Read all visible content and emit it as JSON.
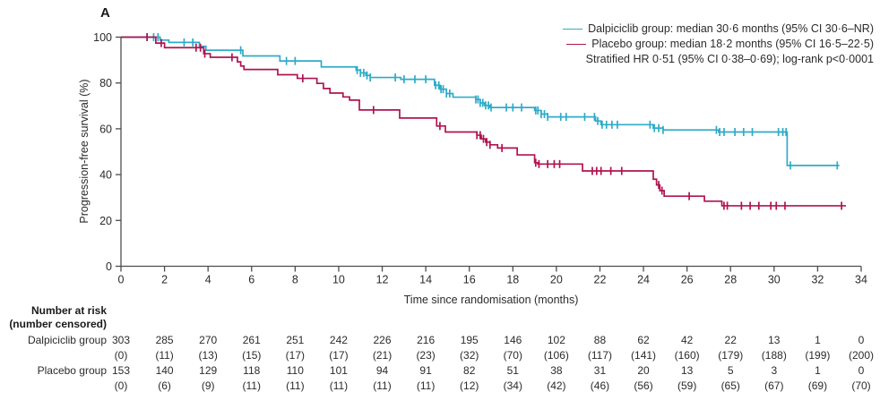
{
  "panel_label": "A",
  "colors": {
    "dalpiciclib": "#2fabc8",
    "placebo": "#b01351",
    "axis": "#4d4d4d",
    "text": "#2b2b2b"
  },
  "legend": {
    "entries": [
      {
        "label": "Dalpiciclib group: median 30·6 months (95% CI 30·6–NR)",
        "color": "#2fabc8"
      },
      {
        "label": "Placebo group: median 18·2 months (95% CI 16·5–22·5)",
        "color": "#b01351"
      }
    ],
    "note": "Stratified HR 0·51 (95% CI 0·38–0·69); log-rank p<0·0001"
  },
  "chart_data": {
    "type": "line",
    "subtype": "kaplan-meier-step",
    "title": "",
    "xlabel": "Time since randomisation (months)",
    "ylabel": "Progression-free survival (%)",
    "xlim": [
      0,
      34
    ],
    "ylim": [
      0,
      100
    ],
    "xticks": [
      0,
      2,
      4,
      6,
      8,
      10,
      12,
      14,
      16,
      18,
      20,
      22,
      24,
      26,
      28,
      30,
      32,
      34
    ],
    "yticks": [
      0,
      20,
      40,
      60,
      80,
      100
    ],
    "grid": false,
    "legend_position": "top-right",
    "series": [
      {
        "name": "Dalpiciclib group",
        "color": "#2fabc8",
        "steps": [
          [
            0,
            100
          ],
          [
            1.8,
            98.7
          ],
          [
            2.2,
            97.7
          ],
          [
            3.6,
            96.0
          ],
          [
            3.9,
            94.3
          ],
          [
            5.6,
            91.8
          ],
          [
            7.3,
            89.6
          ],
          [
            9.2,
            87.0
          ],
          [
            10.8,
            85.6
          ],
          [
            11.0,
            84.4
          ],
          [
            11.25,
            83.3
          ],
          [
            11.45,
            82.4
          ],
          [
            12.85,
            81.6
          ],
          [
            14.4,
            79.0
          ],
          [
            14.65,
            77.3
          ],
          [
            14.95,
            75.4
          ],
          [
            15.25,
            73.8
          ],
          [
            16.3,
            72.8
          ],
          [
            16.5,
            71.3
          ],
          [
            16.7,
            70.2
          ],
          [
            16.95,
            69.3
          ],
          [
            19.0,
            68.0
          ],
          [
            19.3,
            66.4
          ],
          [
            19.6,
            65.2
          ],
          [
            21.8,
            63.4
          ],
          [
            22.05,
            61.8
          ],
          [
            24.45,
            60.3
          ],
          [
            24.9,
            59.5
          ],
          [
            27.45,
            58.6
          ],
          [
            30.6,
            44.0
          ]
        ],
        "end": 33.0,
        "censor_times": [
          1.2,
          1.5,
          1.7,
          2.9,
          3.3,
          5.5,
          7.6,
          8.0,
          10.85,
          11.0,
          11.15,
          11.3,
          11.45,
          12.6,
          13.0,
          13.5,
          14.0,
          14.45,
          14.6,
          14.7,
          14.8,
          14.95,
          15.1,
          16.3,
          16.4,
          16.5,
          16.62,
          16.75,
          16.88,
          17.0,
          17.7,
          18.0,
          18.4,
          19.05,
          19.15,
          19.3,
          19.45,
          19.6,
          20.2,
          20.45,
          21.3,
          21.75,
          21.9,
          22.1,
          22.3,
          22.55,
          22.8,
          24.3,
          24.5,
          24.7,
          24.9,
          27.35,
          27.5,
          27.7,
          28.2,
          28.6,
          29.0,
          30.2,
          30.4,
          30.55,
          30.75,
          32.9
        ]
      },
      {
        "name": "Placebo group",
        "color": "#b01351",
        "steps": [
          [
            0,
            100
          ],
          [
            1.6,
            97.4
          ],
          [
            2.0,
            95.4
          ],
          [
            3.8,
            92.8
          ],
          [
            4.1,
            91.2
          ],
          [
            5.35,
            89.2
          ],
          [
            5.5,
            87.4
          ],
          [
            5.65,
            85.9
          ],
          [
            7.2,
            83.6
          ],
          [
            8.1,
            82.0
          ],
          [
            9.0,
            79.8
          ],
          [
            9.3,
            77.6
          ],
          [
            9.6,
            75.6
          ],
          [
            10.2,
            73.9
          ],
          [
            10.5,
            72.5
          ],
          [
            10.95,
            68.2
          ],
          [
            12.8,
            64.7
          ],
          [
            14.5,
            61.2
          ],
          [
            14.9,
            58.6
          ],
          [
            16.35,
            57.2
          ],
          [
            16.55,
            55.6
          ],
          [
            16.75,
            54.2
          ],
          [
            16.95,
            53.0
          ],
          [
            17.3,
            51.6
          ],
          [
            18.2,
            48.6
          ],
          [
            19.0,
            45.2
          ],
          [
            19.15,
            44.6
          ],
          [
            21.2,
            41.6
          ],
          [
            24.45,
            38.0
          ],
          [
            24.6,
            35.5
          ],
          [
            24.75,
            33.0
          ],
          [
            24.95,
            30.6
          ],
          [
            26.8,
            28.4
          ],
          [
            27.6,
            26.4
          ]
        ],
        "end": 33.3,
        "censor_times": [
          1.2,
          1.85,
          3.45,
          3.65,
          3.85,
          5.1,
          8.35,
          11.6,
          14.65,
          16.35,
          16.5,
          16.65,
          16.8,
          16.95,
          17.5,
          19.05,
          19.2,
          19.6,
          19.9,
          20.15,
          21.65,
          21.85,
          22.05,
          22.5,
          23.0,
          24.7,
          24.85,
          26.1,
          27.7,
          27.85,
          28.5,
          28.9,
          29.3,
          29.85,
          30.1,
          30.5,
          33.1
        ]
      }
    ]
  },
  "risk_table": {
    "header_line1": "Number at risk",
    "header_line2": "(number censored)",
    "time_points": [
      0,
      2,
      4,
      6,
      8,
      10,
      12,
      14,
      16,
      18,
      20,
      22,
      24,
      26,
      28,
      30,
      32,
      34
    ],
    "rows": [
      {
        "label": "Dalpiciclib group",
        "at_risk": [
          "303",
          "285",
          "270",
          "261",
          "251",
          "242",
          "226",
          "216",
          "195",
          "146",
          "102",
          "88",
          "62",
          "42",
          "22",
          "13",
          "1",
          "0"
        ],
        "censored": [
          "(0)",
          "(11)",
          "(13)",
          "(15)",
          "(17)",
          "(17)",
          "(21)",
          "(23)",
          "(32)",
          "(70)",
          "(106)",
          "(117)",
          "(141)",
          "(160)",
          "(179)",
          "(188)",
          "(199)",
          "(200)"
        ]
      },
      {
        "label": "Placebo group",
        "at_risk": [
          "153",
          "140",
          "129",
          "118",
          "110",
          "101",
          "94",
          "91",
          "82",
          "51",
          "38",
          "31",
          "20",
          "13",
          "5",
          "3",
          "1",
          "0"
        ],
        "censored": [
          "(0)",
          "(6)",
          "(9)",
          "(11)",
          "(11)",
          "(11)",
          "(11)",
          "(11)",
          "(12)",
          "(34)",
          "(42)",
          "(46)",
          "(56)",
          "(59)",
          "(65)",
          "(67)",
          "(69)",
          "(70)"
        ]
      }
    ]
  }
}
